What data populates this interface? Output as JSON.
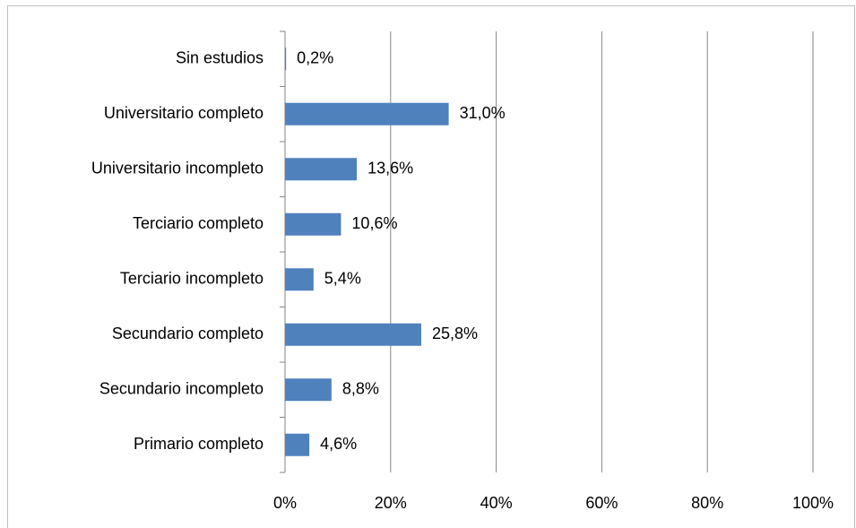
{
  "chart_data": {
    "type": "hbar",
    "categories": [
      "Sin estudios",
      "Universitario completo",
      "Universitario incompleto",
      "Terciario completo",
      "Terciario incompleto",
      "Secundario completo",
      "Secundario incompleto",
      "Primario completo"
    ],
    "values": [
      0.2,
      31.0,
      13.6,
      10.6,
      5.4,
      25.8,
      8.8,
      4.6
    ],
    "value_labels": [
      "0,2%",
      "31,0%",
      "13,6%",
      "10,6%",
      "5,4%",
      "25,8%",
      "8,8%",
      "4,6%"
    ],
    "color": "#4f81bd",
    "xlim": [
      0,
      100
    ],
    "xticks": [
      {
        "value": 0,
        "label": "0%"
      },
      {
        "value": 20,
        "label": "20%"
      },
      {
        "value": 40,
        "label": "40%"
      },
      {
        "value": 60,
        "label": "60%"
      },
      {
        "value": 80,
        "label": "80%"
      },
      {
        "value": 100,
        "label": "100%"
      }
    ],
    "grid": true
  }
}
